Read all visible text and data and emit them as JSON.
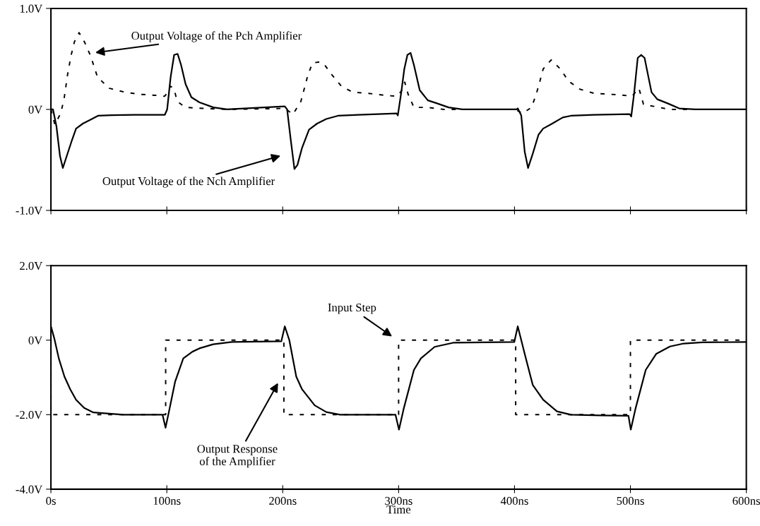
{
  "chart_data": [
    {
      "type": "line",
      "xlim": [
        0,
        600
      ],
      "ylim": [
        -1.0,
        1.0
      ],
      "xticks": [
        {
          "value": 0,
          "label": null
        },
        {
          "value": 100,
          "label": null
        },
        {
          "value": 200,
          "label": null
        },
        {
          "value": 300,
          "label": null
        },
        {
          "value": 400,
          "label": null
        },
        {
          "value": 500,
          "label": null
        },
        {
          "value": 600,
          "label": null
        }
      ],
      "yticks": [
        {
          "value": -1.0,
          "label": "-1.0V"
        },
        {
          "value": 0,
          "label": "0V"
        },
        {
          "value": 1.0,
          "label": "1.0V"
        }
      ],
      "tick_labels": "y",
      "grid": false,
      "legend": false,
      "series": [
        {
          "color": "#000000",
          "line_style": "dashed",
          "x": [
            0,
            3.4,
            8.4,
            11.3,
            14.3,
            17.3,
            20.3,
            24.3,
            29.3,
            34.2,
            40.2,
            50.2,
            64.1,
            76,
            90,
            98,
            101,
            103,
            106,
            109,
            116,
            132,
            152,
            202,
            208.8,
            215.7,
            218.7,
            221.7,
            225.7,
            231.6,
            235.6,
            242.6,
            250.6,
            260.5,
            273.4,
            287.4,
            298.3,
            302.3,
            305.3,
            308.2,
            313.2,
            325.2,
            339,
            400.8,
            406.8,
            414.7,
            418.7,
            421.7,
            424.7,
            431.6,
            439.6,
            446.6,
            456.5,
            468.5,
            482.4,
            494.3,
            501.3,
            507.3,
            511.3,
            520.2,
            534.1,
            555
          ],
          "values": [
            0,
            -0.15,
            -0.04,
            0.1,
            0.34,
            0.53,
            0.67,
            0.76,
            0.66,
            0.53,
            0.32,
            0.21,
            0.17,
            0.15,
            0.14,
            0.13,
            0.17,
            0.23,
            0.21,
            0.08,
            0.02,
            0.01,
            0,
            0.01,
            -0.05,
            0.08,
            0.21,
            0.34,
            0.46,
            0.47,
            0.45,
            0.34,
            0.23,
            0.17,
            0.16,
            0.14,
            0.13,
            0.18,
            0.27,
            0.15,
            0.02,
            0.02,
            0,
            0,
            -0.04,
            0.02,
            0.15,
            0.27,
            0.4,
            0.49,
            0.4,
            0.28,
            0.2,
            0.16,
            0.15,
            0.14,
            0.13,
            0.21,
            0.05,
            0.03,
            0,
            0
          ]
        },
        {
          "color": "#000000",
          "line_style": "solid",
          "x": [
            0,
            1.8,
            4.8,
            7.8,
            10.3,
            13.7,
            17.7,
            21.7,
            27.6,
            33.6,
            40.6,
            52.5,
            72.4,
            98.3,
            100.3,
            103.3,
            106.3,
            109.3,
            112.3,
            116.2,
            121.2,
            128.2,
            140.2,
            152,
            201.8,
            203.8,
            206.8,
            210.1,
            212.7,
            216.7,
            222.7,
            229.7,
            237.6,
            247.6,
            265.5,
            298.3,
            299.3,
            302.3,
            304.9,
            307.6,
            310.3,
            313.2,
            318.2,
            325.2,
            333.1,
            343.1,
            355,
            401.8,
            402.8,
            405.8,
            408.8,
            411.7,
            415.7,
            420.7,
            424.7,
            432.6,
            441.6,
            448.6,
            468.5,
            499.3,
            500.7,
            503.3,
            506.3,
            509.3,
            512.2,
            518.2,
            523.2,
            532.1,
            542.1,
            556,
            600
          ],
          "values": [
            0,
            0,
            -0.17,
            -0.46,
            -0.58,
            -0.46,
            -0.32,
            -0.19,
            -0.14,
            -0.105,
            -0.063,
            -0.057,
            -0.053,
            -0.053,
            0,
            0.32,
            0.54,
            0.55,
            0.44,
            0.25,
            0.12,
            0.07,
            0.02,
            0,
            0.03,
            0,
            -0.29,
            -0.59,
            -0.55,
            -0.38,
            -0.2,
            -0.14,
            -0.095,
            -0.063,
            -0.053,
            -0.04,
            -0.06,
            0.17,
            0.4,
            0.54,
            0.56,
            0.44,
            0.19,
            0.09,
            0.06,
            0.02,
            0,
            0,
            0.01,
            -0.06,
            -0.42,
            -0.58,
            -0.44,
            -0.25,
            -0.19,
            -0.14,
            -0.08,
            -0.063,
            -0.053,
            -0.046,
            -0.07,
            0.17,
            0.51,
            0.54,
            0.51,
            0.17,
            0.1,
            0.06,
            0.01,
            0,
            0
          ]
        }
      ],
      "annotations": [
        "Output Voltage of the Pch Amplifier",
        "Output Voltage of the Nch Amplifier"
      ]
    },
    {
      "type": "line",
      "xlabel": "Time",
      "xlim": [
        0,
        600
      ],
      "ylim": [
        -4.0,
        2.0
      ],
      "xticks": [
        {
          "value": 0,
          "label": "0s"
        },
        {
          "value": 100,
          "label": "100ns"
        },
        {
          "value": 200,
          "label": "200ns"
        },
        {
          "value": 300,
          "label": "300ns"
        },
        {
          "value": 400,
          "label": "400ns"
        },
        {
          "value": 500,
          "label": "500ns"
        },
        {
          "value": 600,
          "label": "600ns"
        }
      ],
      "yticks": [
        {
          "value": -4.0,
          "label": "-4.0V"
        },
        {
          "value": -2.0,
          "label": "-2.0V"
        },
        {
          "value": 0,
          "label": "0V"
        },
        {
          "value": 2.0,
          "label": "2.0V"
        }
      ],
      "grid": false,
      "legend": false,
      "series": [
        {
          "color": "#000000",
          "line_style": "dashed",
          "x": [
            0,
            0,
            99,
            99,
            201,
            201,
            300,
            300,
            401,
            401,
            500,
            500,
            600
          ],
          "values": [
            0,
            -2,
            -2,
            0,
            0,
            -2,
            -2,
            0,
            0,
            -2,
            -2,
            0,
            0
          ]
        },
        {
          "color": "#000000",
          "line_style": "solid",
          "x": [
            0.3,
            2.8,
            6.8,
            11.7,
            16.7,
            21.7,
            28.7,
            36.6,
            48.5,
            62.4,
            96.3,
            98.9,
            102.3,
            107.2,
            114.2,
            122.1,
            128.1,
            140,
            156,
            198.8,
            201.8,
            205.7,
            211.7,
            216.7,
            227.6,
            237.6,
            249.6,
            297.3,
            300.3,
            304.3,
            313.2,
            319.2,
            331.1,
            347,
            399.8,
            402.8,
            408.8,
            415.7,
            424.7,
            436.6,
            448.6,
            474.4,
            498.3,
            500.3,
            504.3,
            513.2,
            522.2,
            534.1,
            546,
            562,
            600
          ],
          "values": [
            0.34,
            0.06,
            -0.49,
            -0.98,
            -1.32,
            -1.6,
            -1.82,
            -1.94,
            -1.97,
            -2.0,
            -2.0,
            -2.35,
            -1.85,
            -1.11,
            -0.49,
            -0.31,
            -0.22,
            -0.11,
            -0.05,
            -0.03,
            0.37,
            0.0,
            -0.98,
            -1.32,
            -1.75,
            -1.93,
            -2.0,
            -2.0,
            -2.4,
            -1.85,
            -0.8,
            -0.49,
            -0.18,
            -0.07,
            -0.05,
            0.37,
            -0.37,
            -1.2,
            -1.6,
            -1.91,
            -2.0,
            -2.02,
            -2.03,
            -2.4,
            -1.85,
            -0.8,
            -0.37,
            -0.17,
            -0.09,
            -0.06,
            -0.05
          ]
        }
      ],
      "annotations": [
        "Input Step",
        "Output Response\nof the Amplifier"
      ]
    }
  ]
}
